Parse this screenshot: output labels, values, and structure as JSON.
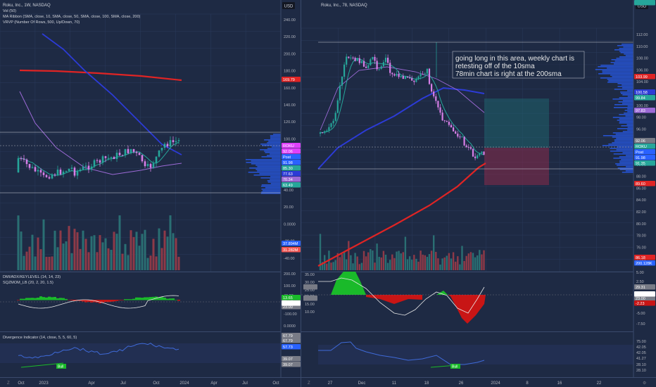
{
  "colors": {
    "bg": "#1e2a44",
    "grid": "#2a3a5c",
    "axis_text": "#b2b5be",
    "up": "#26a69a",
    "down": "#ef5350",
    "ma10": "#26a69a",
    "ma50": "#9c6ad6",
    "ma100": "#2c3bd6",
    "ma200": "#e02424",
    "vrvp": "#2962ff",
    "osc_line": "#e8e8e8",
    "diverg": "#3f6ad8",
    "green_block": "#1aba2a",
    "red_block": "#c81515"
  },
  "left": {
    "title": "Roku, Inc., 1W, NASDAQ",
    "indicators": [
      "Vol (50)",
      "MA Ribbon (SMA, close, 10, SMA, close, 50, SMA, close, 100, SMA, close, 200)",
      "VRVP (Number Of Rows, 500, Up/Down, 70)"
    ],
    "currency": "USD",
    "price_ticks": [
      "240.00",
      "220.00",
      "200.00",
      "180.00",
      "160.00",
      "140.00",
      "120.00",
      "100.00",
      "80.00",
      "60.00",
      "40.00",
      "20.00",
      "0.0000",
      "-20.00",
      "-40.00"
    ],
    "price_badges": [
      {
        "label": "169.79",
        "color": "#e02424"
      },
      {
        "label": "ROKU",
        "color": "#e040fb"
      },
      {
        "label": "92.06",
        "color": "#e040fb"
      },
      {
        "label": "Post",
        "color": "#2962ff"
      },
      {
        "label": "91.98",
        "color": "#2962ff"
      },
      {
        "label": "85.30",
        "color": "#26a69a"
      },
      {
        "label": "77.63",
        "color": "#2c3bd6"
      },
      {
        "label": "70.34",
        "color": "#9c6ad6"
      },
      {
        "label": "63.49",
        "color": "#26a69a"
      },
      {
        "label": "37.894M",
        "color": "#2962ff"
      },
      {
        "label": "31.282M",
        "color": "#ef5350"
      }
    ],
    "osc_title1": "DMI/ADX/KEYLEVEL (14, 14, 23)",
    "osc_title2": "SQZMOM_LB (20, 2, 20, 1.5)",
    "osc_ticks": [
      "200.00",
      "100.00",
      "40.00",
      "0.0000",
      "-100.00",
      "0.0000"
    ],
    "osc_badges": [
      {
        "label": "28.53",
        "color": "#787b86"
      },
      {
        "label": "23.00",
        "color": "#787b86"
      },
      {
        "label": "13.65",
        "color": "#1aba2a"
      },
      {
        "label": "0.0000",
        "color": "#ffffff"
      }
    ],
    "div_title": "Divergence Indicator (14, close, 5, 5, 60, 5)",
    "div_badges": [
      {
        "label": "67.79",
        "color": "#787b86"
      },
      {
        "label": "67.79",
        "color": "#787b86"
      },
      {
        "label": "57.73",
        "color": "#2962ff"
      },
      {
        "label": "39.07",
        "color": "#787b86"
      },
      {
        "label": "39.07",
        "color": "#787b86"
      }
    ],
    "div_tag": "Bull",
    "time_ticks": [
      "Oct",
      "2023",
      "Apr",
      "Jul",
      "Oct",
      "2024",
      "Apr",
      "Jul",
      "Oct"
    ]
  },
  "right": {
    "title": "Roku, Inc., 78, NASDAQ",
    "currency": "USD",
    "price_ticks": [
      "112.00",
      "110.00",
      "108.00",
      "106.00",
      "104.00",
      "102.00",
      "100.00",
      "98.00",
      "96.00",
      "94.00",
      "92.00",
      "90.00",
      "88.00",
      "86.00",
      "84.00",
      "82.00",
      "80.00",
      "78.00",
      "76.00",
      "74.00"
    ],
    "price_badges": [
      {
        "label": "103.99",
        "color": "#e02424"
      },
      {
        "label": "100.58",
        "color": "#2c3bd6"
      },
      {
        "label": "99.84",
        "color": "#26a69a"
      },
      {
        "label": "97.83",
        "color": "#9c6ad6"
      },
      {
        "label": "92.06",
        "color": "#787b86"
      },
      {
        "label": "ROKU",
        "color": "#26a69a"
      },
      {
        "label": "Post",
        "color": "#2962ff"
      },
      {
        "label": "91.98",
        "color": "#2962ff"
      },
      {
        "label": "91.35",
        "color": "#26a69a"
      },
      {
        "label": "89.60",
        "color": "#e02424"
      },
      {
        "label": "86.18",
        "color": "#e02424"
      },
      {
        "label": "200.128K",
        "color": "#2962ff"
      },
      {
        "label": "161.795K",
        "color": "#26a69a"
      }
    ],
    "note_lines": [
      "going long in this area, weekly chart is",
      "retesting off of the 10sma",
      "78min chart is right at the 200sma"
    ],
    "osc_ticks": [
      "5.00",
      "2.50",
      "0.0000",
      "-2.50",
      "-5.00",
      "-7.50"
    ],
    "osc_left_ticks": [
      "35.00",
      "30.00",
      "25.00",
      "20.00",
      "15.00",
      "10.00"
    ],
    "osc_badges": [
      {
        "label": "29.31",
        "color": "#787b86"
      },
      {
        "label": "23.00",
        "color": "#787b86"
      },
      {
        "label": "0.0000",
        "color": "#ffffff"
      },
      {
        "label": "-2.23",
        "color": "#c81515"
      }
    ],
    "div_ticks": [
      "75.00",
      "42.05",
      "42.05",
      "41.27",
      "28.10",
      "28.10"
    ],
    "div_tag": "Bull",
    "time_ticks": [
      "27",
      "Dec",
      "11",
      "18",
      "26",
      "2024",
      "8",
      "16",
      "22"
    ]
  }
}
